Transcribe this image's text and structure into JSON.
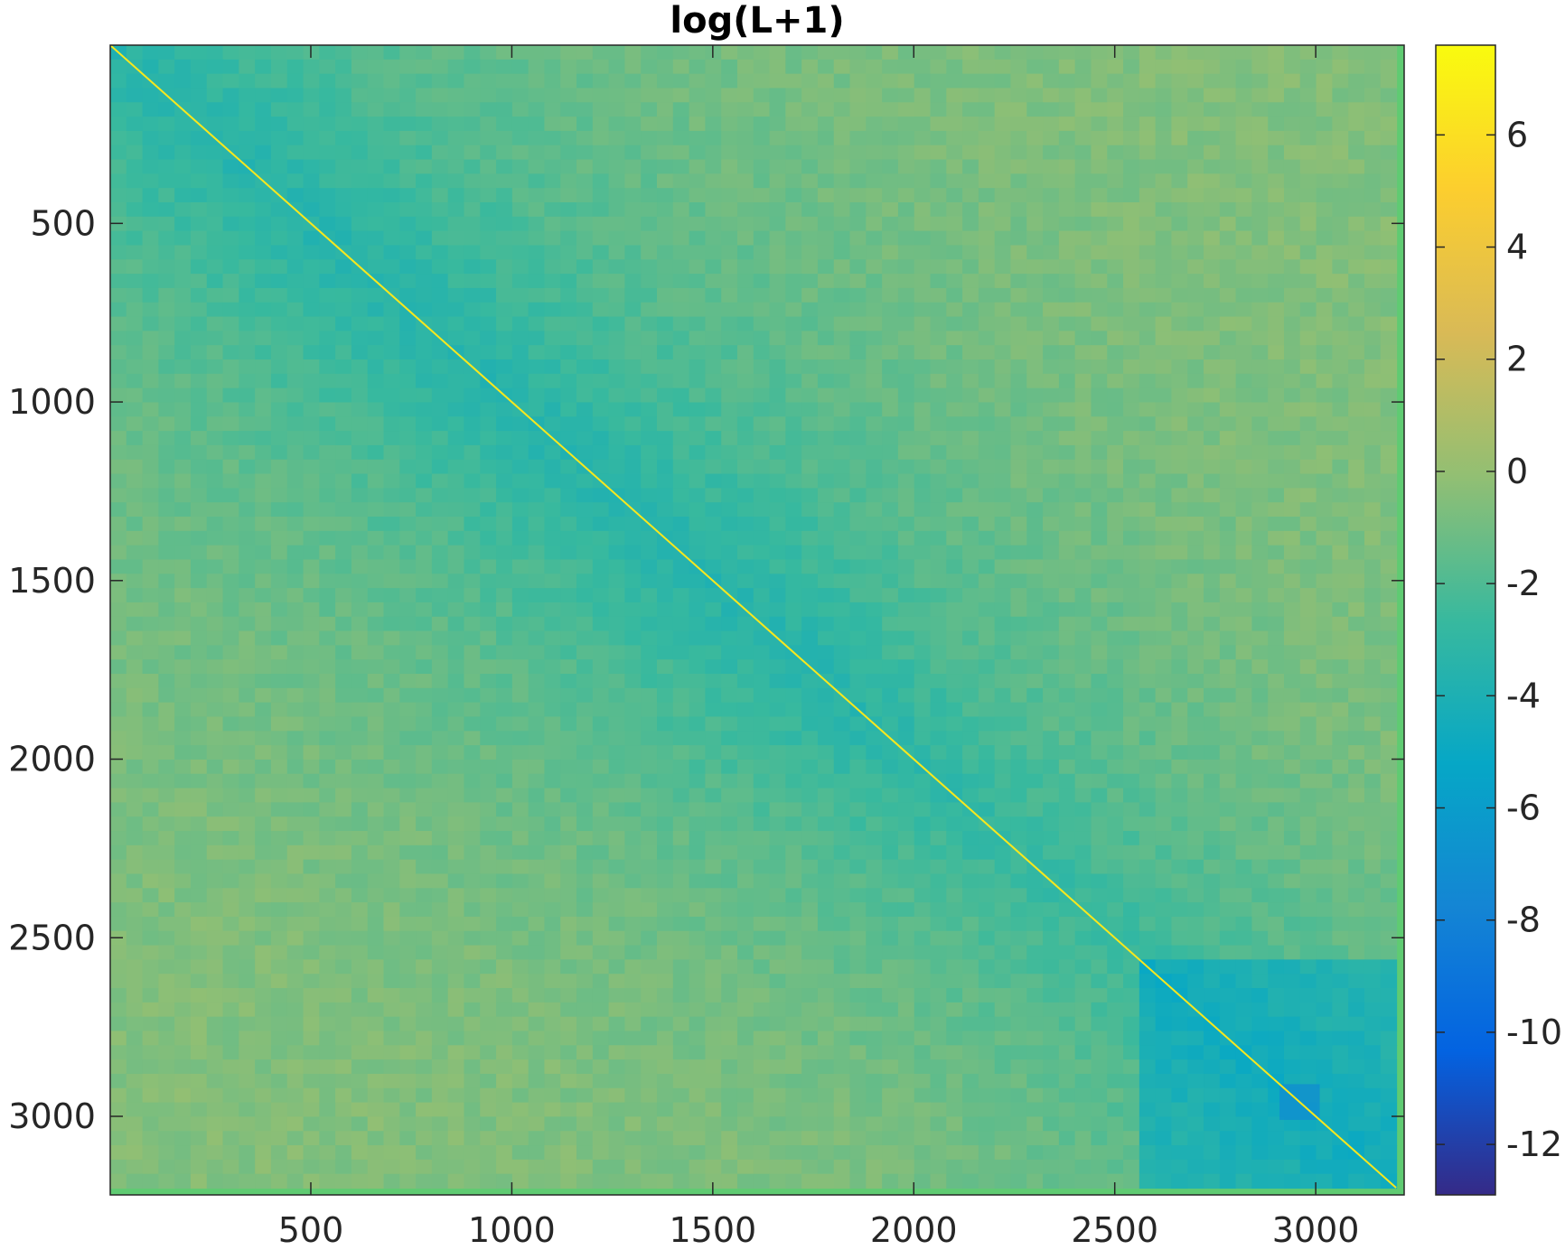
{
  "chart_data": {
    "type": "heatmap",
    "title": "log(L+1)",
    "xlabel": "",
    "ylabel": "",
    "matrix_size": 3200,
    "xlim": [
      1,
      3220
    ],
    "ylim": [
      1,
      3220
    ],
    "y_direction": "reversed",
    "x_ticks": [
      500,
      1000,
      1500,
      2000,
      2500,
      3000
    ],
    "y_ticks": [
      500,
      1000,
      1500,
      2000,
      2500,
      3000
    ],
    "x_tick_labels": [
      "500",
      "1000",
      "1500",
      "2000",
      "2500",
      "3000"
    ],
    "y_tick_labels": [
      "500",
      "1000",
      "1500",
      "2000",
      "2500",
      "3000"
    ],
    "colorbar": {
      "position": "right",
      "colormap": "parula",
      "clim": [
        -12.9,
        7.6
      ],
      "ticks": [
        6,
        4,
        2,
        0,
        -2,
        -4,
        -6,
        -8,
        -10,
        -12
      ],
      "tick_labels": [
        "6",
        "4",
        "2",
        "0",
        "-2",
        "-4",
        "-6",
        "-8",
        "-10",
        "-12"
      ]
    },
    "description_values": {
      "diagonal_value": 6.5,
      "background_value": -0.5,
      "dense_region_value": -3.5,
      "lower_right_block_value": -7
    },
    "grid": false
  },
  "colors": {
    "background_field": "#5fcb72",
    "diagonal": "#dcdc2e",
    "axis": "#262626"
  }
}
